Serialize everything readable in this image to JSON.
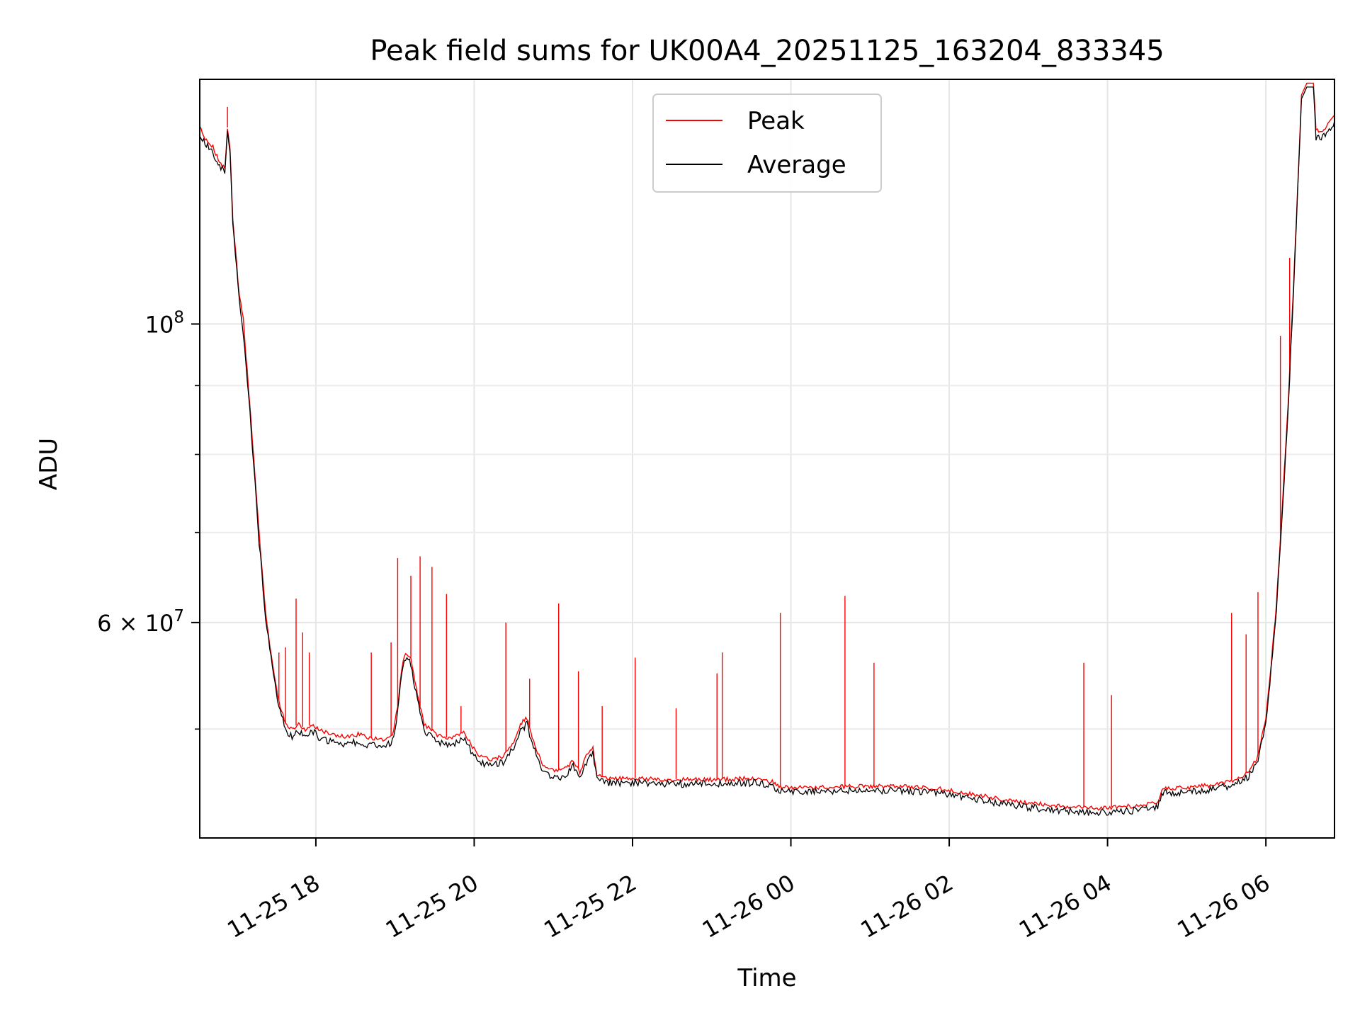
{
  "chart_data": {
    "type": "line",
    "title": "Peak field sums for UK00A4_20251125_163204_833345",
    "xlabel": "Time",
    "ylabel": "ADU",
    "yscale": "log",
    "grid": true,
    "legend_position": "top-center",
    "xlim": [
      "2025-11-25 16:32",
      "2025-11-26 06:52"
    ],
    "ylim": [
      41500000,
      152000000
    ],
    "x_ticks": [
      {
        "t": "2025-11-25 18:00",
        "label": "11-25 18"
      },
      {
        "t": "2025-11-25 20:00",
        "label": "11-25 20"
      },
      {
        "t": "2025-11-25 22:00",
        "label": "11-25 22"
      },
      {
        "t": "2025-11-26 00:00",
        "label": "11-26 00"
      },
      {
        "t": "2025-11-26 02:00",
        "label": "11-26 02"
      },
      {
        "t": "2025-11-26 04:00",
        "label": "11-26 04"
      },
      {
        "t": "2025-11-26 06:00",
        "label": "11-26 06"
      }
    ],
    "y_ticks": [
      {
        "v": 100000000,
        "label_base": "10",
        "label_exp": "8"
      },
      {
        "v": 60000000,
        "label_base": "6 × 10",
        "label_exp": "7"
      }
    ],
    "y_minor_ticks": [
      50000000,
      70000000,
      80000000,
      90000000
    ],
    "series_style": {
      "Peak": {
        "color": "#ff0000"
      },
      "Average": {
        "color": "#000000"
      }
    },
    "series": [
      {
        "name": "Peak",
        "points": [
          [
            "2025-11-25 16:32",
            140000000
          ],
          [
            "2025-11-25 16:37",
            137000000
          ],
          [
            "2025-11-25 16:42",
            135500000
          ],
          [
            "2025-11-25 16:47",
            132000000
          ],
          [
            "2025-11-25 16:51",
            131000000
          ],
          [
            "2025-11-25 16:53",
            140000000
          ],
          [
            "2025-11-25 16:55",
            135000000
          ],
          [
            "2025-11-25 16:57",
            120000000
          ],
          [
            "2025-11-25 17:02",
            105000000
          ],
          [
            "2025-11-25 17:05",
            101000000
          ],
          [
            "2025-11-25 17:07",
            95000000
          ],
          [
            "2025-11-25 17:12",
            82000000
          ],
          [
            "2025-11-25 17:17",
            70000000
          ],
          [
            "2025-11-25 17:22",
            61000000
          ],
          [
            "2025-11-25 17:27",
            56000000
          ],
          [
            "2025-11-25 17:32",
            52500000
          ],
          [
            "2025-11-25 17:37",
            50500000
          ],
          [
            "2025-11-25 17:42",
            50000000
          ],
          [
            "2025-11-25 17:47",
            50500000
          ],
          [
            "2025-11-25 17:52",
            50000000
          ],
          [
            "2025-11-25 17:57",
            50500000
          ],
          [
            "2025-11-25 18:02",
            50000000
          ],
          [
            "2025-11-25 18:12",
            49600000
          ],
          [
            "2025-11-25 18:22",
            49400000
          ],
          [
            "2025-11-25 18:32",
            49600000
          ],
          [
            "2025-11-25 18:42",
            49300000
          ],
          [
            "2025-11-25 18:52",
            49200000
          ],
          [
            "2025-11-25 18:58",
            49500000
          ],
          [
            "2025-11-25 19:02",
            52000000
          ],
          [
            "2025-11-25 19:05",
            55500000
          ],
          [
            "2025-11-25 19:08",
            57000000
          ],
          [
            "2025-11-25 19:12",
            56500000
          ],
          [
            "2025-11-25 19:17",
            53000000
          ],
          [
            "2025-11-25 19:22",
            50500000
          ],
          [
            "2025-11-25 19:32",
            49500000
          ],
          [
            "2025-11-25 19:42",
            49200000
          ],
          [
            "2025-11-25 19:52",
            49800000
          ],
          [
            "2025-11-25 20:02",
            48000000
          ],
          [
            "2025-11-25 20:12",
            47500000
          ],
          [
            "2025-11-25 20:22",
            47800000
          ],
          [
            "2025-11-25 20:30",
            49000000
          ],
          [
            "2025-11-25 20:35",
            50500000
          ],
          [
            "2025-11-25 20:40",
            51000000
          ],
          [
            "2025-11-25 20:45",
            49000000
          ],
          [
            "2025-11-25 20:52",
            47000000
          ],
          [
            "2025-11-25 21:02",
            46600000
          ],
          [
            "2025-11-25 21:10",
            46800000
          ],
          [
            "2025-11-25 21:15",
            47500000
          ],
          [
            "2025-11-25 21:20",
            46500000
          ],
          [
            "2025-11-25 21:25",
            47800000
          ],
          [
            "2025-11-25 21:30",
            48500000
          ],
          [
            "2025-11-25 21:33",
            46200000
          ],
          [
            "2025-11-25 21:42",
            46000000
          ],
          [
            "2025-11-25 22:02",
            46000000
          ],
          [
            "2025-11-25 22:32",
            45900000
          ],
          [
            "2025-11-25 23:02",
            45900000
          ],
          [
            "2025-11-25 23:32",
            46000000
          ],
          [
            "2025-11-25 23:47",
            45700000
          ],
          [
            "2025-11-25 23:52",
            45300000
          ],
          [
            "2025-11-26 00:22",
            45300000
          ],
          [
            "2025-11-26 00:52",
            45400000
          ],
          [
            "2025-11-26 01:22",
            45400000
          ],
          [
            "2025-11-26 01:52",
            45200000
          ],
          [
            "2025-11-26 02:22",
            44700000
          ],
          [
            "2025-11-26 02:52",
            44200000
          ],
          [
            "2025-11-26 03:22",
            43900000
          ],
          [
            "2025-11-26 03:52",
            43700000
          ],
          [
            "2025-11-26 04:22",
            43900000
          ],
          [
            "2025-11-26 04:38",
            44200000
          ],
          [
            "2025-11-26 04:42",
            45200000
          ],
          [
            "2025-11-26 05:02",
            45300000
          ],
          [
            "2025-11-26 05:22",
            45500000
          ],
          [
            "2025-11-26 05:37",
            45900000
          ],
          [
            "2025-11-26 05:47",
            46500000
          ],
          [
            "2025-11-26 05:54",
            47800000
          ],
          [
            "2025-11-26 06:00",
            51000000
          ],
          [
            "2025-11-26 06:04",
            56000000
          ],
          [
            "2025-11-26 06:08",
            62000000
          ],
          [
            "2025-11-26 06:12",
            72000000
          ],
          [
            "2025-11-26 06:17",
            88000000
          ],
          [
            "2025-11-26 06:22",
            113000000
          ],
          [
            "2025-11-26 06:27",
            148000000
          ],
          [
            "2025-11-26 06:31",
            151000000
          ],
          [
            "2025-11-26 06:36",
            151000000
          ],
          [
            "2025-11-26 06:38",
            140000000
          ],
          [
            "2025-11-26 06:42",
            139000000
          ],
          [
            "2025-11-26 06:47",
            141000000
          ],
          [
            "2025-11-26 06:52",
            143000000
          ]
        ],
        "spikes": [
          [
            "2025-11-25 16:53",
            145000000
          ],
          [
            "2025-11-25 17:05",
            101000000
          ],
          [
            "2025-11-25 17:32",
            57000000
          ],
          [
            "2025-11-25 17:37",
            57500000
          ],
          [
            "2025-11-25 17:45",
            62500000
          ],
          [
            "2025-11-25 17:50",
            59000000
          ],
          [
            "2025-11-25 17:55",
            57000000
          ],
          [
            "2025-11-25 18:42",
            57000000
          ],
          [
            "2025-11-25 18:57",
            58000000
          ],
          [
            "2025-11-25 19:02",
            67000000
          ],
          [
            "2025-11-25 19:12",
            65000000
          ],
          [
            "2025-11-25 19:19",
            67200000
          ],
          [
            "2025-11-25 19:28",
            66000000
          ],
          [
            "2025-11-25 19:39",
            63000000
          ],
          [
            "2025-11-25 19:50",
            52000000
          ],
          [
            "2025-11-25 20:24",
            60000000
          ],
          [
            "2025-11-25 20:42",
            54500000
          ],
          [
            "2025-11-25 21:04",
            62000000
          ],
          [
            "2025-11-25 21:19",
            55200000
          ],
          [
            "2025-11-25 21:37",
            52000000
          ],
          [
            "2025-11-25 22:02",
            56500000
          ],
          [
            "2025-11-25 22:33",
            51800000
          ],
          [
            "2025-11-25 23:04",
            55000000
          ],
          [
            "2025-11-25 23:08",
            57000000
          ],
          [
            "2025-11-25 23:52",
            61000000
          ],
          [
            "2025-11-26 00:41",
            62800000
          ],
          [
            "2025-11-26 01:03",
            56000000
          ],
          [
            "2025-11-26 03:42",
            56000000
          ],
          [
            "2025-11-26 04:03",
            53000000
          ],
          [
            "2025-11-26 05:34",
            61000000
          ],
          [
            "2025-11-26 05:45",
            58800000
          ],
          [
            "2025-11-26 05:54",
            63200000
          ],
          [
            "2025-11-26 06:11",
            98000000
          ],
          [
            "2025-11-26 06:18",
            112000000
          ]
        ]
      },
      {
        "name": "Average",
        "points": [
          [
            "2025-11-25 16:32",
            139000000
          ],
          [
            "2025-11-25 16:37",
            136000000
          ],
          [
            "2025-11-25 16:42",
            134500000
          ],
          [
            "2025-11-25 16:47",
            131000000
          ],
          [
            "2025-11-25 16:51",
            130000000
          ],
          [
            "2025-11-25 16:53",
            139000000
          ],
          [
            "2025-11-25 16:55",
            134000000
          ],
          [
            "2025-11-25 16:57",
            119000000
          ],
          [
            "2025-11-25 17:02",
            104000000
          ],
          [
            "2025-11-25 17:07",
            94000000
          ],
          [
            "2025-11-25 17:12",
            81000000
          ],
          [
            "2025-11-25 17:17",
            69000000
          ],
          [
            "2025-11-25 17:22",
            60500000
          ],
          [
            "2025-11-25 17:27",
            55500000
          ],
          [
            "2025-11-25 17:32",
            52000000
          ],
          [
            "2025-11-25 17:37",
            50000000
          ],
          [
            "2025-11-25 17:42",
            49500000
          ],
          [
            "2025-11-25 17:47",
            50000000
          ],
          [
            "2025-11-25 17:52",
            49400000
          ],
          [
            "2025-11-25 17:57",
            50000000
          ],
          [
            "2025-11-25 18:02",
            49400000
          ],
          [
            "2025-11-25 18:12",
            49000000
          ],
          [
            "2025-11-25 18:22",
            48800000
          ],
          [
            "2025-11-25 18:32",
            49000000
          ],
          [
            "2025-11-25 18:42",
            48700000
          ],
          [
            "2025-11-25 18:52",
            48600000
          ],
          [
            "2025-11-25 18:58",
            49000000
          ],
          [
            "2025-11-25 19:02",
            51500000
          ],
          [
            "2025-11-25 19:05",
            55000000
          ],
          [
            "2025-11-25 19:08",
            56500000
          ],
          [
            "2025-11-25 19:12",
            56000000
          ],
          [
            "2025-11-25 19:17",
            52500000
          ],
          [
            "2025-11-25 19:22",
            50000000
          ],
          [
            "2025-11-25 19:32",
            49000000
          ],
          [
            "2025-11-25 19:42",
            48600000
          ],
          [
            "2025-11-25 19:52",
            49300000
          ],
          [
            "2025-11-25 20:02",
            47500000
          ],
          [
            "2025-11-25 20:12",
            47000000
          ],
          [
            "2025-11-25 20:22",
            47300000
          ],
          [
            "2025-11-25 20:30",
            48500000
          ],
          [
            "2025-11-25 20:35",
            50000000
          ],
          [
            "2025-11-25 20:40",
            50500000
          ],
          [
            "2025-11-25 20:45",
            48500000
          ],
          [
            "2025-11-25 20:52",
            46500000
          ],
          [
            "2025-11-25 21:02",
            46100000
          ],
          [
            "2025-11-25 21:10",
            46300000
          ],
          [
            "2025-11-25 21:15",
            47000000
          ],
          [
            "2025-11-25 21:20",
            46000000
          ],
          [
            "2025-11-25 21:25",
            47300000
          ],
          [
            "2025-11-25 21:30",
            48000000
          ],
          [
            "2025-11-25 21:33",
            45900000
          ],
          [
            "2025-11-25 21:42",
            45700000
          ],
          [
            "2025-11-25 22:02",
            45700000
          ],
          [
            "2025-11-25 22:32",
            45600000
          ],
          [
            "2025-11-25 23:02",
            45600000
          ],
          [
            "2025-11-25 23:32",
            45700000
          ],
          [
            "2025-11-25 23:47",
            45400000
          ],
          [
            "2025-11-25 23:52",
            45000000
          ],
          [
            "2025-11-26 00:22",
            45000000
          ],
          [
            "2025-11-26 00:52",
            45100000
          ],
          [
            "2025-11-26 01:22",
            45100000
          ],
          [
            "2025-11-26 01:52",
            44900000
          ],
          [
            "2025-11-26 02:22",
            44400000
          ],
          [
            "2025-11-26 02:52",
            43900000
          ],
          [
            "2025-11-26 03:22",
            43600000
          ],
          [
            "2025-11-26 03:52",
            43400000
          ],
          [
            "2025-11-26 04:22",
            43600000
          ],
          [
            "2025-11-26 04:38",
            43900000
          ],
          [
            "2025-11-26 04:42",
            44900000
          ],
          [
            "2025-11-26 05:02",
            45000000
          ],
          [
            "2025-11-26 05:22",
            45200000
          ],
          [
            "2025-11-26 05:37",
            45600000
          ],
          [
            "2025-11-26 05:47",
            46200000
          ],
          [
            "2025-11-26 05:54",
            47500000
          ],
          [
            "2025-11-26 06:00",
            50500000
          ],
          [
            "2025-11-26 06:04",
            55500000
          ],
          [
            "2025-11-26 06:08",
            61500000
          ],
          [
            "2025-11-26 06:12",
            71000000
          ],
          [
            "2025-11-26 06:17",
            87000000
          ],
          [
            "2025-11-26 06:22",
            112000000
          ],
          [
            "2025-11-26 06:27",
            147000000
          ],
          [
            "2025-11-26 06:31",
            150000000
          ],
          [
            "2025-11-26 06:36",
            150000000
          ],
          [
            "2025-11-26 06:38",
            138000000
          ],
          [
            "2025-11-26 06:42",
            137500000
          ],
          [
            "2025-11-26 06:47",
            139500000
          ],
          [
            "2025-11-26 06:52",
            141500000
          ]
        ]
      }
    ]
  }
}
